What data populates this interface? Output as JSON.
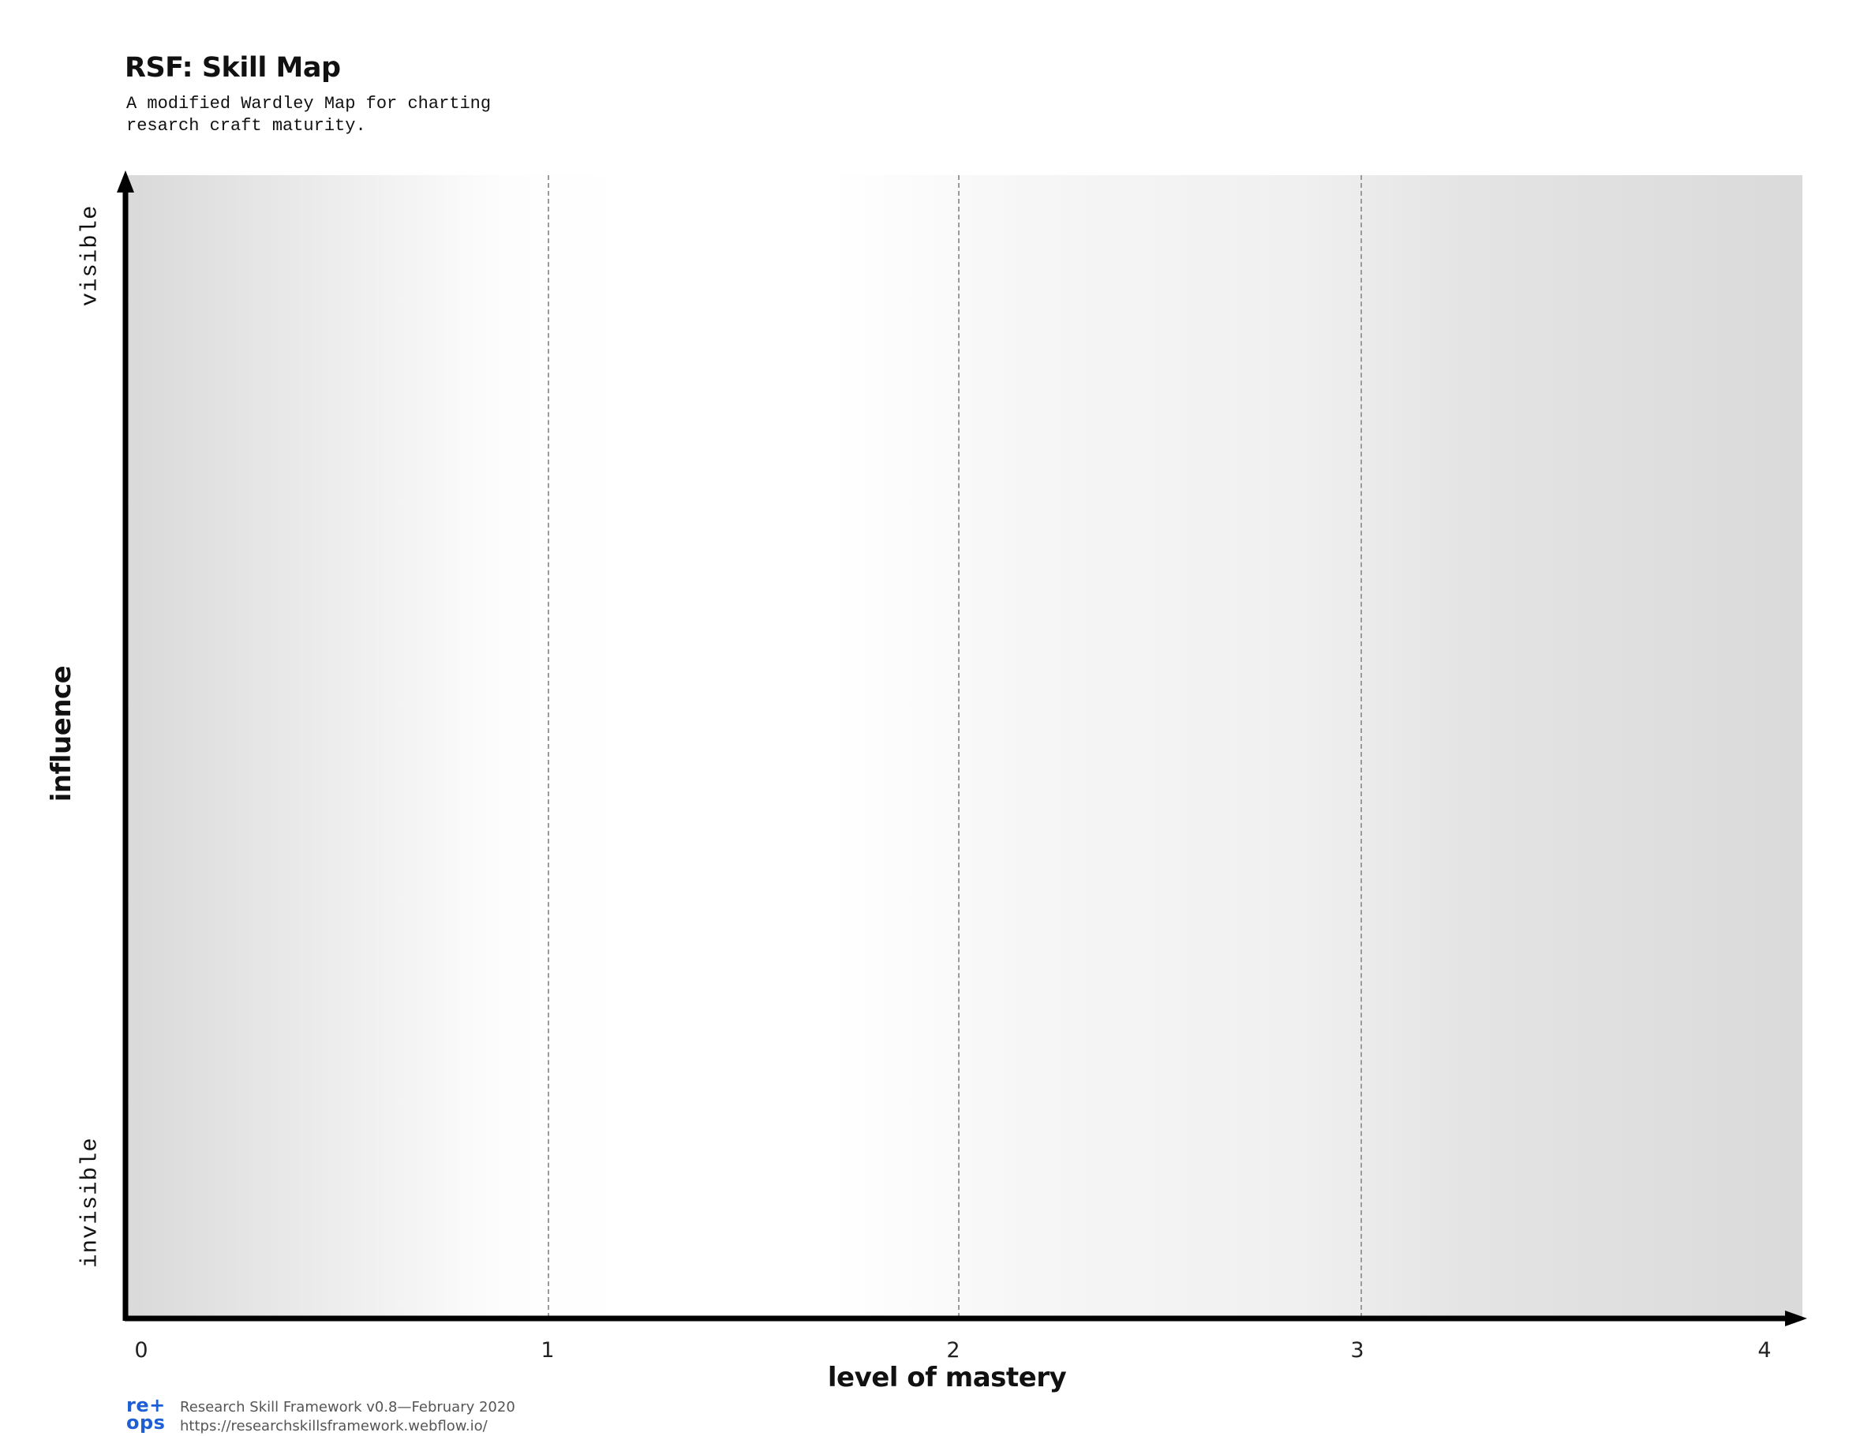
{
  "header": {
    "title": "RSF: Skill Map",
    "subtitle": "A modified Wardley Map for charting\nresarch craft maturity."
  },
  "axes": {
    "x_label": "level of mastery",
    "x_ticks": [
      "0",
      "1",
      "2",
      "3",
      "4"
    ],
    "y_label": "influence",
    "y_top": "visible",
    "y_bottom": "invisible"
  },
  "footer": {
    "logo_top": "re+",
    "logo_bottom": "ops",
    "line1": "Research Skill Framework v0.8—February 2020",
    "line2": "https://researchskillsframework.webflow.io/"
  },
  "colors": {
    "axis": "#000000",
    "gridline": "#9a9a9a",
    "logo": "#1f5fd6"
  }
}
